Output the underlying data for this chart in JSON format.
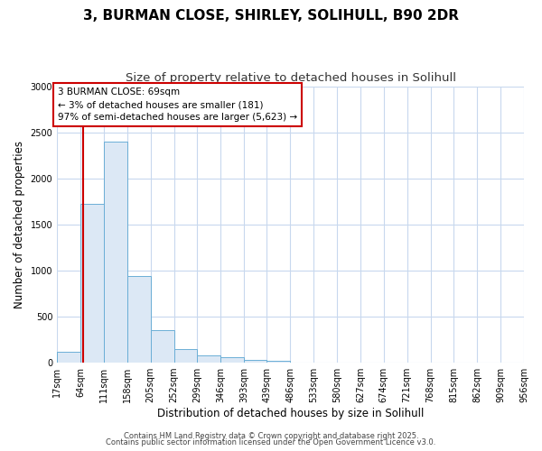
{
  "title1": "3, BURMAN CLOSE, SHIRLEY, SOLIHULL, B90 2DR",
  "title2": "Size of property relative to detached houses in Solihull",
  "xlabel": "Distribution of detached houses by size in Solihull",
  "ylabel": "Number of detached properties",
  "bin_edges": [
    17,
    64,
    111,
    158,
    205,
    252,
    299,
    346,
    393,
    439,
    486,
    533,
    580,
    627,
    674,
    721,
    768,
    815,
    862,
    909,
    956
  ],
  "bar_heights": [
    120,
    1720,
    2400,
    940,
    350,
    145,
    80,
    55,
    30,
    20,
    5,
    5,
    5,
    0,
    0,
    0,
    0,
    0,
    0,
    0
  ],
  "bar_color": "#dce8f5",
  "bar_edge_color": "#6baed6",
  "bg_color": "#ffffff",
  "grid_color": "#c8d8ee",
  "vline_x": 69,
  "vline_color": "#cc0000",
  "annotation_text": "3 BURMAN CLOSE: 69sqm\n← 3% of detached houses are smaller (181)\n97% of semi-detached houses are larger (5,623) →",
  "annotation_box_color": "#cc0000",
  "annotation_text_color": "#000000",
  "ylim": [
    0,
    3000
  ],
  "yticks": [
    0,
    500,
    1000,
    1500,
    2000,
    2500,
    3000
  ],
  "footer1": "Contains HM Land Registry data © Crown copyright and database right 2025.",
  "footer2": "Contains public sector information licensed under the Open Government Licence v3.0.",
  "title1_fontsize": 11,
  "title2_fontsize": 9.5,
  "tick_fontsize": 7,
  "ylabel_fontsize": 8.5,
  "xlabel_fontsize": 8.5,
  "annotation_fontsize": 7.5,
  "footer_fontsize": 6
}
